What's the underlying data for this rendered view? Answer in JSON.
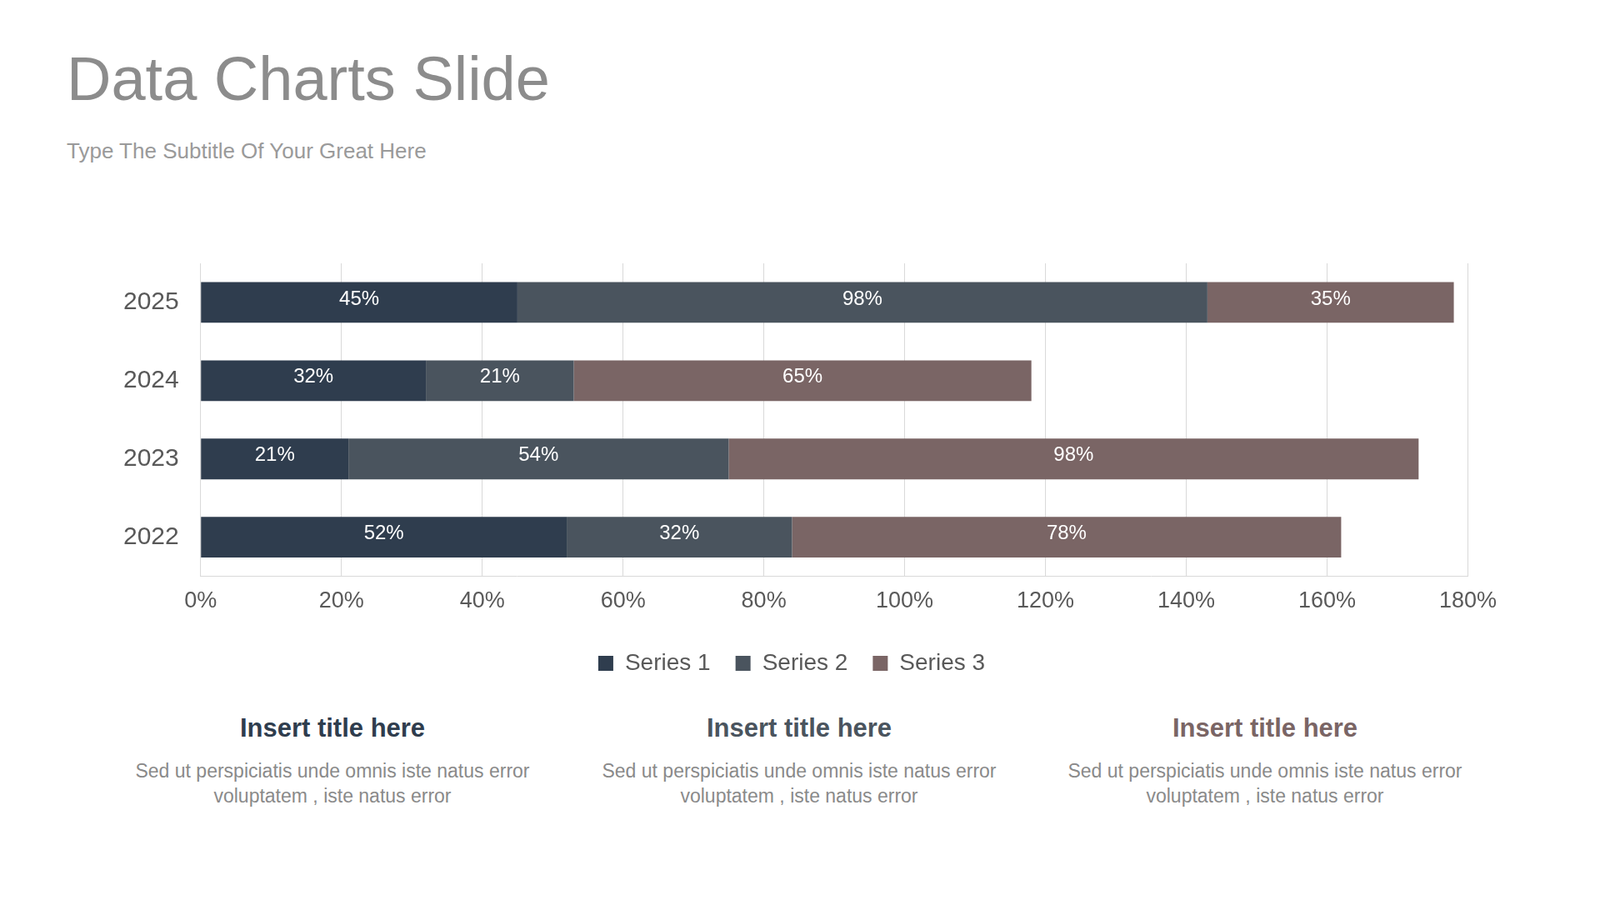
{
  "chart_data": {
    "type": "bar",
    "title": "Data Charts Slide",
    "subtitle": "Type The Subtitle Of Your Great Here",
    "orientation": "horizontal",
    "stacked": true,
    "data_labels": true,
    "grid": true,
    "legend": "bottom",
    "categories": [
      "2025",
      "2024",
      "2023",
      "2022"
    ],
    "series": [
      {
        "name": "Series 1",
        "color": "#2f3d4e",
        "values": [
          45,
          32,
          21,
          52
        ],
        "value_labels": [
          "45%",
          "32%",
          "21%",
          "52%"
        ]
      },
      {
        "name": "Series 2",
        "color": "#4a545e",
        "values": [
          98,
          21,
          54,
          32
        ],
        "value_labels": [
          "98%",
          "21%",
          "54%",
          "32%"
        ]
      },
      {
        "name": "Series 3",
        "color": "#7a6565",
        "values": [
          35,
          65,
          98,
          78
        ],
        "value_labels": [
          "35%",
          "65%",
          "98%",
          "78%"
        ]
      }
    ],
    "xlim": [
      0,
      180
    ],
    "xticks": [
      {
        "value": 0,
        "label": "0%"
      },
      {
        "value": 20,
        "label": "20%"
      },
      {
        "value": 40,
        "label": "40%"
      },
      {
        "value": 60,
        "label": "60%"
      },
      {
        "value": 80,
        "label": "80%"
      },
      {
        "value": 100,
        "label": "100%"
      },
      {
        "value": 120,
        "label": "120%"
      },
      {
        "value": 140,
        "label": "140%"
      },
      {
        "value": 160,
        "label": "160%"
      },
      {
        "value": 180,
        "label": "180%"
      }
    ]
  },
  "captions": [
    {
      "title": "Insert title here",
      "text": "Sed ut perspiciatis unde omnis iste natus error voluptatem , iste natus error",
      "color": "#2f3d4e"
    },
    {
      "title": "Insert title here",
      "text": "Sed ut perspiciatis unde omnis iste natus error voluptatem , iste natus error",
      "color": "#4a545e"
    },
    {
      "title": "Insert title here",
      "text": "Sed ut perspiciatis unde omnis iste natus error voluptatem , iste natus error",
      "color": "#7a6565"
    }
  ]
}
